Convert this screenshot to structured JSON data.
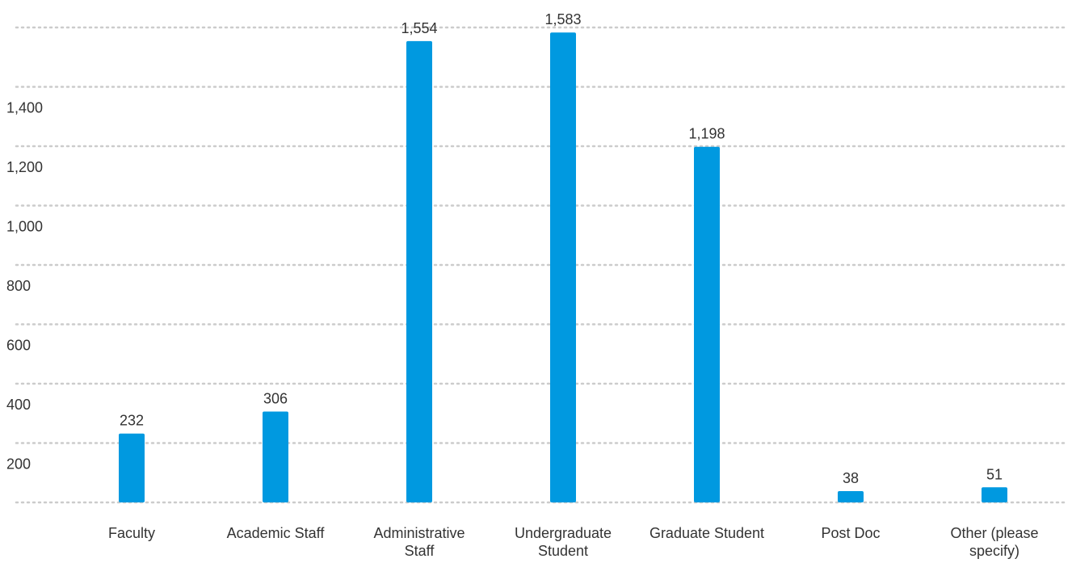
{
  "chart_data": {
    "type": "bar",
    "title": "",
    "xlabel": "",
    "ylabel": "",
    "categories": [
      [
        "Faculty"
      ],
      [
        "Academic Staff"
      ],
      [
        "Administrative",
        "Staff"
      ],
      [
        "Undergraduate",
        "Student"
      ],
      [
        "Graduate Student"
      ],
      [
        "Post Doc"
      ],
      [
        "Other (please",
        "specify)"
      ]
    ],
    "values": [
      232,
      306,
      1554,
      1583,
      1198,
      38,
      51
    ],
    "value_labels": [
      "232",
      "306",
      "1,554",
      "1,583",
      "1,198",
      "38",
      "51"
    ],
    "y_ticks": [
      200,
      400,
      600,
      800,
      1000,
      1200,
      1400
    ],
    "y_tick_labels": [
      "200",
      "400",
      "600",
      "800",
      "1,000",
      "1,200",
      "1,400"
    ],
    "ylim": [
      0,
      1600
    ],
    "grid": true,
    "grid_style": "dotted",
    "legend": "none",
    "bar_color": "#0099e0",
    "grid_color": "#cccccc",
    "text_color": "#333333"
  }
}
